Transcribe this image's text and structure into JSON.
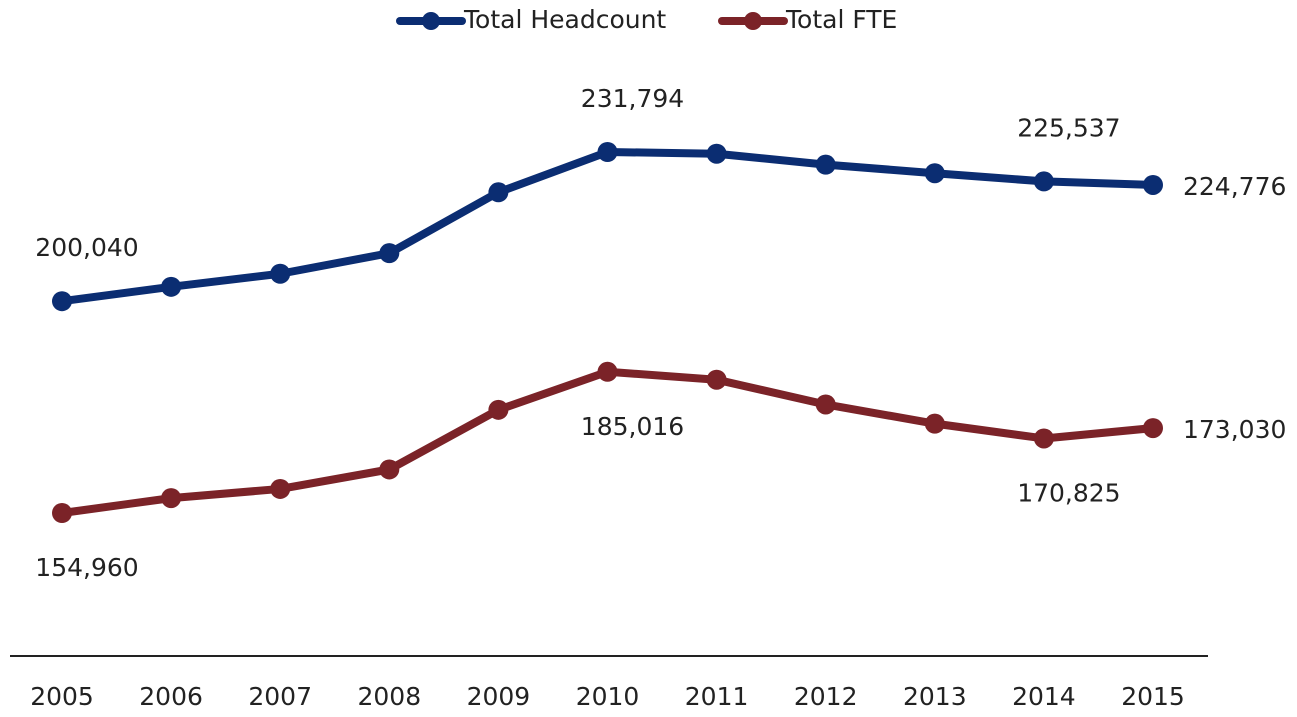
{
  "chart_data": {
    "type": "line",
    "categories": [
      "2005",
      "2006",
      "2007",
      "2008",
      "2009",
      "2010",
      "2011",
      "2012",
      "2013",
      "2014",
      "2015"
    ],
    "series": [
      {
        "name": "Total Headcount",
        "color": "#0b2d72",
        "values": [
          200040,
          203100,
          205880,
          210260,
          223220,
          231794,
          231430,
          229100,
          227280,
          225537,
          224776
        ],
        "value_labels": [
          "200,040",
          null,
          null,
          null,
          null,
          "231,794",
          null,
          null,
          null,
          "225,537",
          "224,776"
        ]
      },
      {
        "name": "Total FTE",
        "color": "#7b2328",
        "values": [
          154960,
          158130,
          160080,
          164230,
          176920,
          185016,
          183330,
          178060,
          173980,
          170825,
          173030
        ],
        "value_labels": [
          "154,960",
          null,
          null,
          null,
          null,
          "185,016",
          null,
          null,
          null,
          "170,825",
          "173,030"
        ]
      }
    ],
    "legend": "top"
  }
}
